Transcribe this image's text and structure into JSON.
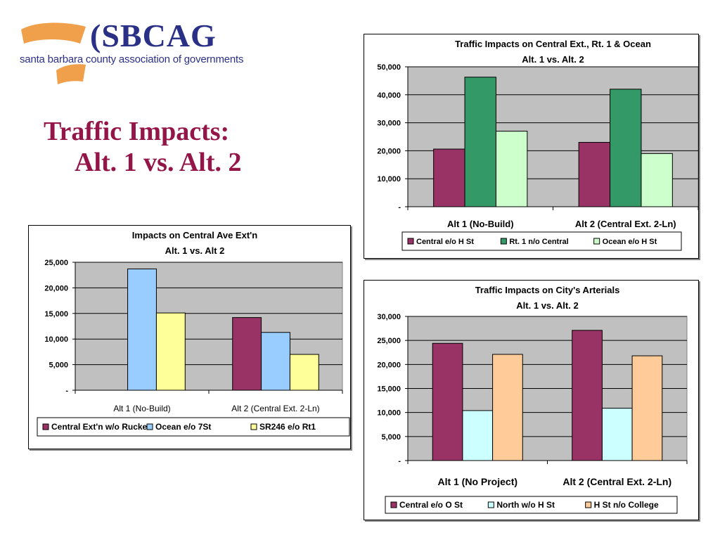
{
  "logo": {
    "name": "(SBCAG",
    "subtitle": "santa barbara county association of governments"
  },
  "slide_title": {
    "line1": "Traffic Impacts:",
    "line2": "Alt. 1  vs.  Alt. 2"
  },
  "colors": {
    "accent_title": "#941648",
    "logo_orange": "#f0a04b",
    "logo_blue": "#2b3087",
    "plot_background": "#c0c0c0"
  },
  "chart_data": [
    {
      "id": "chart1",
      "type": "bar",
      "title_lines": [
        "Traffic Impacts on Central Ext., Rt. 1 & Ocean",
        "Alt. 1 vs. Alt. 2"
      ],
      "categories": [
        "Alt 1 (No-Build)",
        "Alt 2 (Central Ext. 2-Ln)"
      ],
      "series": [
        {
          "name": "Central e/o H St",
          "color": "#993366",
          "values": [
            20600,
            23000
          ]
        },
        {
          "name": "Rt. 1 n/o Central",
          "color": "#339966",
          "values": [
            46300,
            42000
          ]
        },
        {
          "name": "Ocean e/o H St",
          "color": "#ccffcc",
          "values": [
            27000,
            19000
          ]
        }
      ],
      "ylim": [
        0,
        50000
      ],
      "yticks": [
        0,
        10000,
        20000,
        30000,
        40000,
        50000
      ],
      "ytick_labels": [
        "-",
        "10,000",
        "20,000",
        "30,000",
        "40,000",
        "50,000"
      ],
      "grid": true,
      "legend": "bottom"
    },
    {
      "id": "chart2",
      "type": "bar",
      "title_lines": [
        "Impacts on Central Ave Ext'n",
        "Alt. 1 vs. Alt 2"
      ],
      "categories": [
        "Alt 1 (No-Build)",
        "Alt 2 (Central Ext. 2-Ln)"
      ],
      "series": [
        {
          "name": "Central Ext'n w/o Rucker",
          "color": "#993366",
          "values": [
            0,
            14200
          ]
        },
        {
          "name": "Ocean e/o 7St",
          "color": "#99ccff",
          "values": [
            23700,
            11300
          ]
        },
        {
          "name": "SR246 e/o Rt1",
          "color": "#ffff99",
          "values": [
            15100,
            7000
          ]
        }
      ],
      "ylim": [
        0,
        25000
      ],
      "yticks": [
        0,
        5000,
        10000,
        15000,
        20000,
        25000
      ],
      "ytick_labels": [
        "-",
        "5,000",
        "10,000",
        "15,000",
        "20,000",
        "25,000"
      ],
      "grid": true,
      "legend": "bottom"
    },
    {
      "id": "chart3",
      "type": "bar",
      "title_lines": [
        "Traffic Impacts on City's Arterials",
        "Alt. 1 vs. Alt. 2"
      ],
      "categories": [
        "Alt 1 (No Project)",
        "Alt 2 (Central Ext. 2-Ln)"
      ],
      "series": [
        {
          "name": "Central e/o O St",
          "color": "#993366",
          "values": [
            24400,
            27100
          ]
        },
        {
          "name": "North w/o H St",
          "color": "#ccffff",
          "values": [
            10400,
            10900
          ]
        },
        {
          "name": "H St n/o College",
          "color": "#ffcc99",
          "values": [
            22100,
            21800
          ]
        }
      ],
      "ylim": [
        0,
        30000
      ],
      "yticks": [
        0,
        5000,
        10000,
        15000,
        20000,
        25000,
        30000
      ],
      "ytick_labels": [
        "-",
        "5,000",
        "10,000",
        "15,000",
        "20,000",
        "25,000",
        "30,000"
      ],
      "grid": true,
      "legend": "bottom"
    }
  ]
}
